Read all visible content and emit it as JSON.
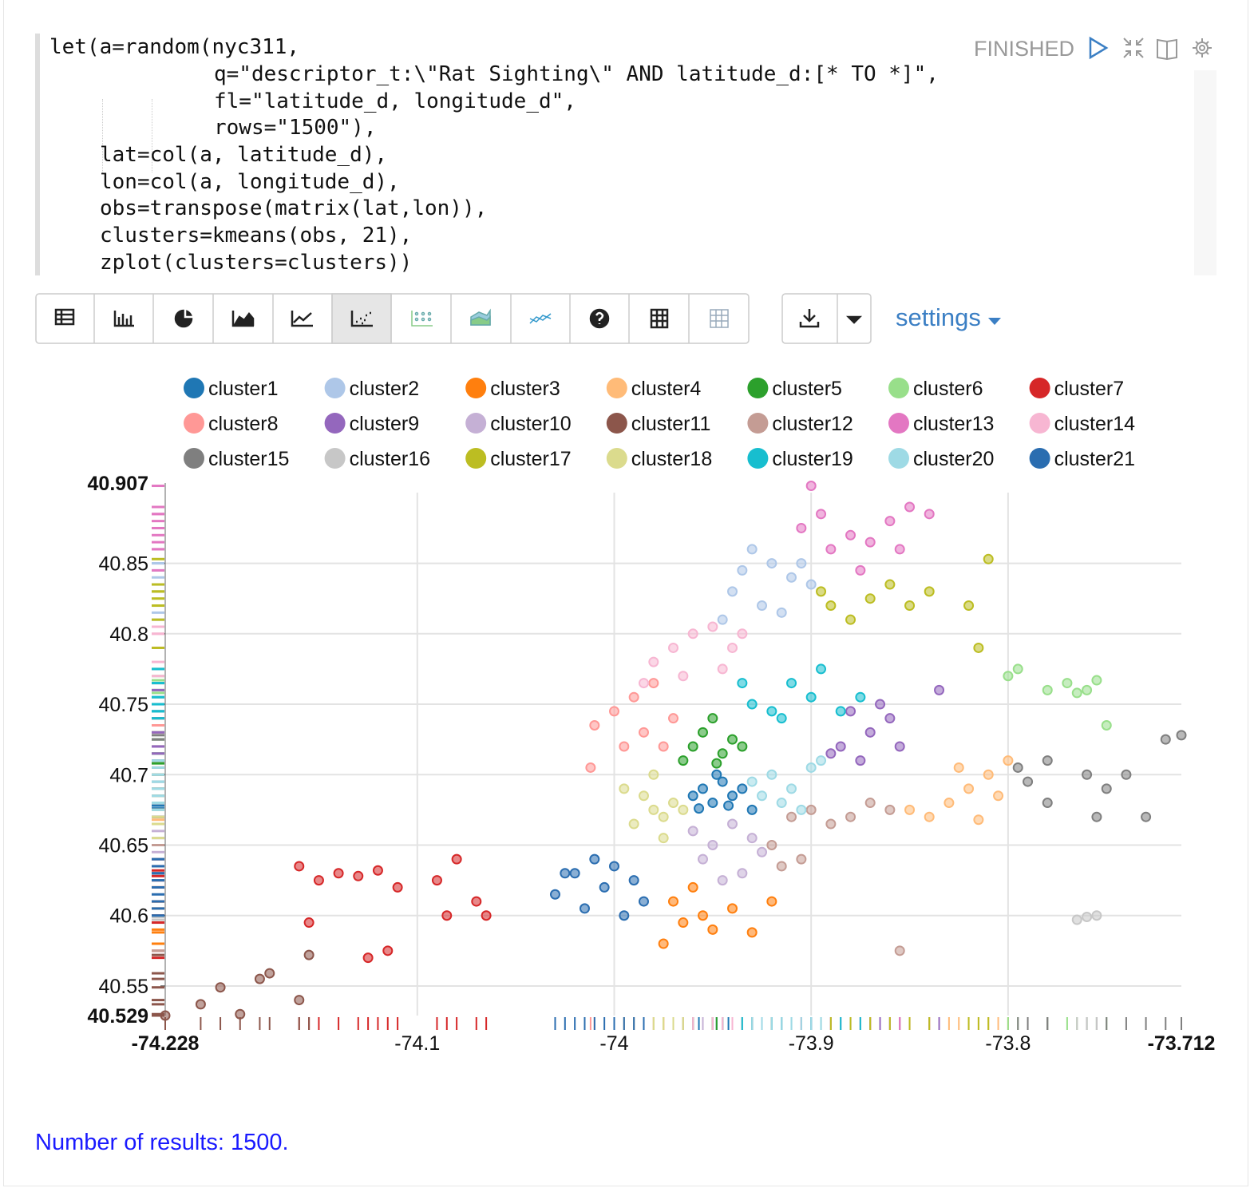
{
  "status": "FINISHED",
  "code": {
    "lines": [
      "let(a=random(nyc311,",
      "q=\"descriptor_t:\\\"Rat Sighting\\\" AND latitude_d:[* TO *]\",",
      "fl=\"latitude_d, longitude_d\",",
      "rows=\"1500\"),",
      "lat=col(a, latitude_d),",
      "lon=col(a, longitude_d),",
      "obs=transpose(matrix(lat,lon)),",
      "clusters=kmeans(obs, 21),",
      "zplot(clusters=clusters))"
    ]
  },
  "toolbar": {
    "settings": "settings"
  },
  "chart_data": {
    "type": "scatter",
    "xlim": [
      -74.228,
      -73.712
    ],
    "ylim": [
      40.529,
      40.907
    ],
    "xticks": [
      -74.1,
      -74,
      -73.9,
      -73.8
    ],
    "yticks": [
      40.55,
      40.6,
      40.65,
      40.7,
      40.75,
      40.8,
      40.85
    ],
    "grid": true,
    "rug": true,
    "series": [
      {
        "name": "cluster1",
        "color": "#1f77b4",
        "x": [
          -73.955,
          -73.945,
          -73.94,
          -73.95,
          -73.935,
          -73.96,
          -73.942,
          -73.948,
          -73.93,
          -73.957
        ],
        "y": [
          40.69,
          40.695,
          40.685,
          40.68,
          40.69,
          40.685,
          40.678,
          40.7,
          40.675,
          40.676
        ]
      },
      {
        "name": "cluster2",
        "color": "#aec7e8",
        "x": [
          -73.93,
          -73.92,
          -73.91,
          -73.94,
          -73.9,
          -73.925,
          -73.945,
          -73.905,
          -73.915,
          -73.935
        ],
        "y": [
          40.86,
          40.85,
          40.84,
          40.83,
          40.835,
          40.82,
          40.81,
          40.85,
          40.815,
          40.845
        ]
      },
      {
        "name": "cluster3",
        "color": "#ff7f0e",
        "x": [
          -73.97,
          -73.96,
          -73.95,
          -73.94,
          -73.975,
          -73.955,
          -73.92,
          -73.93,
          -73.965
        ],
        "y": [
          40.61,
          40.62,
          40.59,
          40.605,
          40.58,
          40.6,
          40.61,
          40.588,
          40.595
        ]
      },
      {
        "name": "cluster4",
        "color": "#ffbb78",
        "x": [
          -73.84,
          -73.83,
          -73.82,
          -73.81,
          -73.8,
          -73.815,
          -73.825,
          -73.805,
          -73.85
        ],
        "y": [
          40.67,
          40.68,
          40.69,
          40.7,
          40.71,
          40.668,
          40.705,
          40.685,
          40.675
        ]
      },
      {
        "name": "cluster5",
        "color": "#2ca02c",
        "x": [
          -73.96,
          -73.955,
          -73.945,
          -73.94,
          -73.95,
          -73.935,
          -73.965,
          -73.948
        ],
        "y": [
          40.72,
          40.73,
          40.715,
          40.725,
          40.74,
          40.72,
          40.71,
          40.708
        ]
      },
      {
        "name": "cluster6",
        "color": "#98df8a",
        "x": [
          -73.8,
          -73.795,
          -73.78,
          -73.77,
          -73.765,
          -73.76,
          -73.75,
          -73.755
        ],
        "y": [
          40.77,
          40.775,
          40.76,
          40.765,
          40.758,
          40.76,
          40.735,
          40.767
        ]
      },
      {
        "name": "cluster7",
        "color": "#d62728",
        "x": [
          -74.16,
          -74.15,
          -74.14,
          -74.13,
          -74.12,
          -74.11,
          -74.155,
          -74.125,
          -74.115,
          -74.09,
          -74.08,
          -74.07,
          -74.065,
          -74.085
        ],
        "y": [
          40.635,
          40.625,
          40.63,
          40.628,
          40.632,
          40.62,
          40.595,
          40.57,
          40.575,
          40.625,
          40.64,
          40.61,
          40.6,
          40.6
        ]
      },
      {
        "name": "cluster8",
        "color": "#ff9896",
        "x": [
          -74.01,
          -74.0,
          -73.99,
          -73.985,
          -73.975,
          -73.995,
          -74.012,
          -73.98,
          -73.97
        ],
        "y": [
          40.735,
          40.745,
          40.755,
          40.73,
          40.72,
          40.72,
          40.705,
          40.765,
          40.74
        ]
      },
      {
        "name": "cluster9",
        "color": "#9467bd",
        "x": [
          -73.88,
          -73.87,
          -73.86,
          -73.89,
          -73.875,
          -73.855,
          -73.865,
          -73.835,
          -73.885
        ],
        "y": [
          40.745,
          40.73,
          40.74,
          40.715,
          40.71,
          40.72,
          40.75,
          40.76,
          40.72
        ]
      },
      {
        "name": "cluster10",
        "color": "#c5b0d5",
        "x": [
          -73.96,
          -73.95,
          -73.94,
          -73.93,
          -73.955,
          -73.935,
          -73.925,
          -73.945
        ],
        "y": [
          40.66,
          40.65,
          40.665,
          40.655,
          40.64,
          40.63,
          40.645,
          40.625
        ]
      },
      {
        "name": "cluster11",
        "color": "#8c564b",
        "x": [
          -74.228,
          -74.21,
          -74.2,
          -74.19,
          -74.18,
          -74.175,
          -74.155,
          -74.16
        ],
        "y": [
          40.529,
          40.537,
          40.549,
          40.53,
          40.555,
          40.559,
          40.572,
          40.54
        ]
      },
      {
        "name": "cluster12",
        "color": "#c49c94",
        "x": [
          -73.91,
          -73.9,
          -73.89,
          -73.88,
          -73.87,
          -73.92,
          -73.905,
          -73.915,
          -73.86,
          -73.855
        ],
        "y": [
          40.67,
          40.675,
          40.665,
          40.67,
          40.68,
          40.65,
          40.64,
          40.635,
          40.675,
          40.575
        ]
      },
      {
        "name": "cluster13",
        "color": "#e377c2",
        "x": [
          -73.9,
          -73.905,
          -73.89,
          -73.88,
          -73.87,
          -73.86,
          -73.85,
          -73.84,
          -73.895,
          -73.875,
          -73.855
        ],
        "y": [
          40.905,
          40.875,
          40.86,
          40.87,
          40.865,
          40.88,
          40.89,
          40.885,
          40.885,
          40.845,
          40.86
        ]
      },
      {
        "name": "cluster14",
        "color": "#f7b6d2",
        "x": [
          -73.98,
          -73.97,
          -73.96,
          -73.95,
          -73.94,
          -73.965,
          -73.945,
          -73.985,
          -73.935
        ],
        "y": [
          40.78,
          40.79,
          40.8,
          40.805,
          40.79,
          40.77,
          40.775,
          40.765,
          40.8
        ]
      },
      {
        "name": "cluster15",
        "color": "#7f7f7f",
        "x": [
          -73.795,
          -73.79,
          -73.78,
          -73.76,
          -73.75,
          -73.74,
          -73.73,
          -73.72,
          -73.712,
          -73.755,
          -73.78
        ],
        "y": [
          40.705,
          40.695,
          40.71,
          40.7,
          40.69,
          40.7,
          40.67,
          40.725,
          40.728,
          40.67,
          40.68
        ]
      },
      {
        "name": "cluster16",
        "color": "#c7c7c7",
        "x": [
          -73.765,
          -73.76,
          -73.755
        ],
        "y": [
          40.597,
          40.599,
          40.6
        ]
      },
      {
        "name": "cluster17",
        "color": "#bcbd22",
        "x": [
          -73.89,
          -73.88,
          -73.87,
          -73.86,
          -73.85,
          -73.84,
          -73.82,
          -73.81,
          -73.815,
          -73.895
        ],
        "y": [
          40.82,
          40.81,
          40.825,
          40.835,
          40.82,
          40.83,
          40.82,
          40.853,
          40.79,
          40.83
        ]
      },
      {
        "name": "cluster18",
        "color": "#dbdb8d",
        "x": [
          -73.995,
          -73.985,
          -73.98,
          -73.975,
          -73.99,
          -73.97,
          -73.965,
          -73.98,
          -73.975
        ],
        "y": [
          40.69,
          40.685,
          40.675,
          40.67,
          40.665,
          40.68,
          40.675,
          40.7,
          40.655
        ]
      },
      {
        "name": "cluster19",
        "color": "#17becf",
        "x": [
          -73.935,
          -73.92,
          -73.91,
          -73.9,
          -73.895,
          -73.885,
          -73.875,
          -73.915,
          -73.93
        ],
        "y": [
          40.765,
          40.745,
          40.765,
          40.755,
          40.775,
          40.745,
          40.755,
          40.74,
          40.75
        ]
      },
      {
        "name": "cluster20",
        "color": "#9edae5",
        "x": [
          -73.93,
          -73.92,
          -73.91,
          -73.9,
          -73.915,
          -73.905,
          -73.895,
          -73.925
        ],
        "y": [
          40.695,
          40.7,
          40.69,
          40.705,
          40.68,
          40.675,
          40.71,
          40.685
        ]
      },
      {
        "name": "cluster21",
        "color": "#2a6db0",
        "x": [
          -74.02,
          -74.01,
          -74.0,
          -74.03,
          -74.005,
          -73.99,
          -73.985,
          -74.015,
          -73.995,
          -74.025
        ],
        "y": [
          40.63,
          40.64,
          40.635,
          40.615,
          40.62,
          40.625,
          40.61,
          40.605,
          40.6,
          40.63
        ]
      }
    ]
  },
  "footer": "Number of results: 1500."
}
